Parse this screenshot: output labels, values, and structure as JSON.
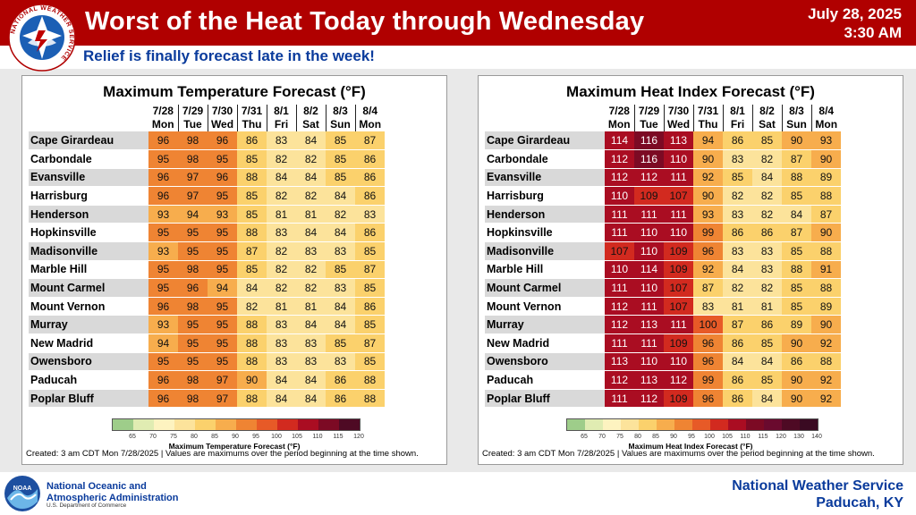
{
  "header": {
    "title": "Worst of the Heat Today through Wednesday",
    "date": "July 28, 2025",
    "time": "3:30 AM",
    "subtitle": "Relief is finally forecast late in the week!",
    "logo_ring_text": "NATIONAL WEATHER SERVICE",
    "colors": {
      "banner": "#b00000",
      "subtitle": "#0a3b9c"
    }
  },
  "panels": [
    {
      "title": "Maximum Temperature Forecast (°F)",
      "dates": [
        "7/28",
        "7/29",
        "7/30",
        "7/31",
        "8/1",
        "8/2",
        "8/3",
        "8/4"
      ],
      "days": [
        "Mon",
        "Tue",
        "Wed",
        "Thu",
        "Fri",
        "Sat",
        "Sun",
        "Mon"
      ],
      "rows": [
        {
          "city": "Cape Girardeau",
          "values": [
            96,
            98,
            96,
            86,
            83,
            84,
            85,
            87
          ]
        },
        {
          "city": "Carbondale",
          "values": [
            95,
            98,
            95,
            85,
            82,
            82,
            85,
            86
          ]
        },
        {
          "city": "Evansville",
          "values": [
            96,
            97,
            96,
            88,
            84,
            84,
            85,
            86
          ]
        },
        {
          "city": "Harrisburg",
          "values": [
            96,
            97,
            95,
            85,
            82,
            82,
            84,
            86
          ]
        },
        {
          "city": "Henderson",
          "values": [
            93,
            94,
            93,
            85,
            81,
            81,
            82,
            83
          ]
        },
        {
          "city": "Hopkinsville",
          "values": [
            95,
            95,
            95,
            88,
            83,
            84,
            84,
            86
          ]
        },
        {
          "city": "Madisonville",
          "values": [
            93,
            95,
            95,
            87,
            82,
            83,
            83,
            85
          ]
        },
        {
          "city": "Marble Hill",
          "values": [
            95,
            98,
            95,
            85,
            82,
            82,
            85,
            87
          ]
        },
        {
          "city": "Mount Carmel",
          "values": [
            95,
            96,
            94,
            84,
            82,
            82,
            83,
            85
          ]
        },
        {
          "city": "Mount Vernon",
          "values": [
            96,
            98,
            95,
            82,
            81,
            81,
            84,
            86
          ]
        },
        {
          "city": "Murray",
          "values": [
            93,
            95,
            95,
            88,
            83,
            84,
            84,
            85
          ]
        },
        {
          "city": "New Madrid",
          "values": [
            94,
            95,
            95,
            88,
            83,
            83,
            85,
            87
          ]
        },
        {
          "city": "Owensboro",
          "values": [
            95,
            95,
            95,
            88,
            83,
            83,
            83,
            85
          ]
        },
        {
          "city": "Paducah",
          "values": [
            96,
            98,
            97,
            90,
            84,
            84,
            86,
            88
          ]
        },
        {
          "city": "Poplar Bluff",
          "values": [
            96,
            98,
            97,
            88,
            84,
            84,
            86,
            88
          ]
        }
      ],
      "scale_title": "Maximum Temperature Forecast (°F)",
      "scale_ticks": [
        65,
        70,
        75,
        80,
        85,
        90,
        95,
        100,
        105,
        110,
        115,
        120
      ],
      "scale_colors": [
        "#9ecd8a",
        "#e0ecb2",
        "#fdf3c0",
        "#fce39b",
        "#fbd16c",
        "#f7ad4d",
        "#ef8433",
        "#e75a27",
        "#d22a1f",
        "#aa0d22",
        "#7c0a24",
        "#4e0a24"
      ],
      "note": "Created: 3 am CDT Mon 7/28/2025  |  Values are maximums over the period beginning at the time shown."
    },
    {
      "title": "Maximum Heat Index Forecast (°F)",
      "dates": [
        "7/28",
        "7/29",
        "7/30",
        "7/31",
        "8/1",
        "8/2",
        "8/3",
        "8/4"
      ],
      "days": [
        "Mon",
        "Tue",
        "Wed",
        "Thu",
        "Fri",
        "Sat",
        "Sun",
        "Mon"
      ],
      "rows": [
        {
          "city": "Cape Girardeau",
          "values": [
            114,
            116,
            113,
            94,
            86,
            85,
            90,
            93
          ]
        },
        {
          "city": "Carbondale",
          "values": [
            112,
            116,
            110,
            90,
            83,
            82,
            87,
            90
          ]
        },
        {
          "city": "Evansville",
          "values": [
            112,
            112,
            111,
            92,
            85,
            84,
            88,
            89
          ]
        },
        {
          "city": "Harrisburg",
          "values": [
            110,
            109,
            107,
            90,
            82,
            82,
            85,
            88
          ]
        },
        {
          "city": "Henderson",
          "values": [
            111,
            111,
            111,
            93,
            83,
            82,
            84,
            87
          ]
        },
        {
          "city": "Hopkinsville",
          "values": [
            111,
            110,
            110,
            99,
            86,
            86,
            87,
            90
          ]
        },
        {
          "city": "Madisonville",
          "values": [
            107,
            110,
            109,
            96,
            83,
            83,
            85,
            88
          ]
        },
        {
          "city": "Marble Hill",
          "values": [
            110,
            114,
            109,
            92,
            84,
            83,
            88,
            91
          ]
        },
        {
          "city": "Mount Carmel",
          "values": [
            111,
            110,
            107,
            87,
            82,
            82,
            85,
            88
          ]
        },
        {
          "city": "Mount Vernon",
          "values": [
            112,
            111,
            107,
            83,
            81,
            81,
            85,
            89
          ]
        },
        {
          "city": "Murray",
          "values": [
            112,
            113,
            111,
            100,
            87,
            86,
            89,
            90
          ]
        },
        {
          "city": "New Madrid",
          "values": [
            111,
            111,
            109,
            96,
            86,
            85,
            90,
            92
          ]
        },
        {
          "city": "Owensboro",
          "values": [
            113,
            110,
            110,
            96,
            84,
            84,
            86,
            88
          ]
        },
        {
          "city": "Paducah",
          "values": [
            112,
            113,
            112,
            99,
            86,
            85,
            90,
            92
          ]
        },
        {
          "city": "Poplar Bluff",
          "values": [
            111,
            112,
            109,
            96,
            86,
            84,
            90,
            92
          ]
        }
      ],
      "scale_title": "Maximum Heat Index Forecast (°F)",
      "scale_ticks": [
        65,
        70,
        75,
        80,
        85,
        90,
        95,
        100,
        105,
        110,
        115,
        120,
        130,
        140
      ],
      "scale_colors": [
        "#9ecd8a",
        "#e0ecb2",
        "#fdf3c0",
        "#fce39b",
        "#fbd16c",
        "#f7ad4d",
        "#ef8433",
        "#e75a27",
        "#d22a1f",
        "#aa0d22",
        "#7c0a24",
        "#6a0a2e",
        "#4e0a24",
        "#3a0a22"
      ],
      "note": "Created: 3 am CDT Mon 7/28/2025  |  Values are maximums over the period beginning at the time shown."
    }
  ],
  "footer": {
    "noaa_line1": "National Oceanic and",
    "noaa_line2": "Atmospheric Administration",
    "noaa_line3": "U.S. Department of Commerce",
    "noaa_logo_text": "NOAA",
    "office_line1": "National Weather Service",
    "office_line2": "Paducah, KY"
  }
}
